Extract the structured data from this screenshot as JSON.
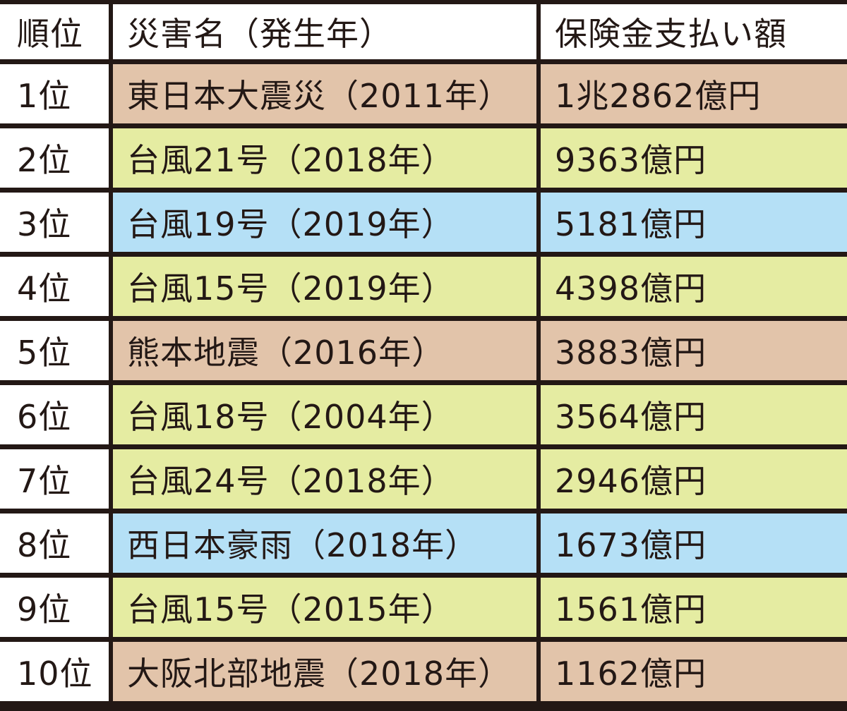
{
  "table": {
    "headers": [
      "順位",
      "災害名（発生年）",
      "保険金支払い額"
    ],
    "rows": [
      {
        "rank": "1位",
        "disaster": "東日本大震災（2011年）",
        "payment": "1兆2862億円",
        "color": "#e2c4aa",
        "category": "quake"
      },
      {
        "rank": "2位",
        "disaster": "台風21号（2018年）",
        "payment": "9363億円",
        "color": "#e5eca2",
        "category": "typhoon"
      },
      {
        "rank": "3位",
        "disaster": "台風19号（2019年）",
        "payment": "5181億円",
        "color": "#b5e0f6",
        "category": "rain"
      },
      {
        "rank": "4位",
        "disaster": "台風15号（2019年）",
        "payment": "4398億円",
        "color": "#e5eca2",
        "category": "typhoon"
      },
      {
        "rank": "5位",
        "disaster": "熊本地震（2016年）",
        "payment": "3883億円",
        "color": "#e2c4aa",
        "category": "quake"
      },
      {
        "rank": "6位",
        "disaster": "台風18号（2004年）",
        "payment": "3564億円",
        "color": "#e5eca2",
        "category": "typhoon"
      },
      {
        "rank": "7位",
        "disaster": "台風24号（2018年）",
        "payment": "2946億円",
        "color": "#e5eca2",
        "category": "typhoon"
      },
      {
        "rank": "8位",
        "disaster": "西日本豪雨（2018年）",
        "payment": "1673億円",
        "color": "#b5e0f6",
        "category": "rain"
      },
      {
        "rank": "9位",
        "disaster": "台風15号（2015年）",
        "payment": "1561億円",
        "color": "#e5eca2",
        "category": "typhoon"
      },
      {
        "rank": "10位",
        "disaster": "大阪北部地震（2018年）",
        "payment": "1162億円",
        "color": "#e2c4aa",
        "category": "quake"
      }
    ]
  },
  "colors": {
    "border": "#231815",
    "header_bg": "#ffffff",
    "rank_bg": "#ffffff",
    "quake": "#e2c4aa",
    "typhoon": "#e5eca2",
    "rain": "#b5e0f6"
  }
}
